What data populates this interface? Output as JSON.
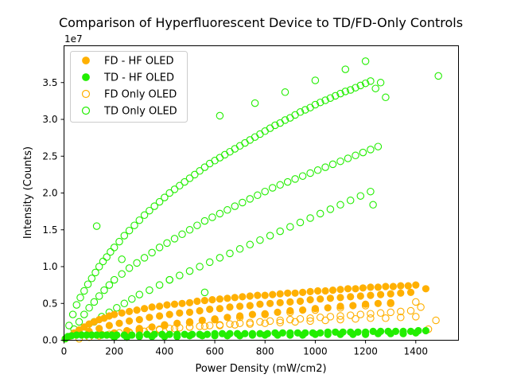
{
  "chart_data": {
    "type": "scatter",
    "title": "Comparison of Hyperfluorescent Device to TD/FD-Only Controls",
    "xlabel": "Power Density (mW/cm2)",
    "ylabel": "Intensity (Counts)",
    "y_offset_label": "1e7",
    "y_scale": 10000000,
    "xlim": [
      0,
      1570
    ],
    "ylim": [
      0,
      4.0
    ],
    "x_ticks": [
      0,
      200,
      400,
      600,
      800,
      1000,
      1200,
      1400
    ],
    "x_tick_labels": [
      "0",
      "200",
      "400",
      "600",
      "800",
      "1000",
      "1200",
      "1400"
    ],
    "y_ticks": [
      0.0,
      0.5,
      1.0,
      1.5,
      2.0,
      2.5,
      3.0,
      3.5
    ],
    "y_tick_labels": [
      "0.0",
      "0.5",
      "1.0",
      "1.5",
      "2.0",
      "2.5",
      "3.0",
      "3.5"
    ],
    "grid": false,
    "legend_position": "top-left",
    "series": [
      {
        "name": "FD - HF OLED",
        "color": "#ffb000",
        "marker": "filled-circle",
        "x": [
          5,
          20,
          40,
          60,
          80,
          100,
          120,
          140,
          160,
          180,
          200,
          230,
          260,
          290,
          320,
          350,
          380,
          410,
          440,
          470,
          500,
          530,
          560,
          590,
          620,
          650,
          680,
          710,
          740,
          770,
          800,
          830,
          860,
          890,
          920,
          950,
          980,
          1010,
          1040,
          1070,
          1100,
          1130,
          1160,
          1190,
          1220,
          1250,
          1280,
          1310,
          1340,
          1370,
          1400,
          1440,
          100,
          140,
          180,
          220,
          260,
          300,
          340,
          380,
          420,
          460,
          500,
          540,
          580,
          620,
          660,
          700,
          740,
          780,
          820,
          860,
          900,
          940,
          980,
          1020,
          1060,
          1100,
          1140,
          1180,
          1220,
          1260,
          1300,
          1340,
          1380,
          150,
          200,
          250,
          300,
          350,
          400,
          450,
          500,
          550,
          600,
          650,
          700,
          750,
          800,
          850,
          900,
          950,
          1000,
          1050,
          1100,
          1150,
          1200,
          1250,
          1300
        ],
        "y": [
          0.02,
          0.05,
          0.1,
          0.14,
          0.18,
          0.22,
          0.25,
          0.28,
          0.3,
          0.33,
          0.35,
          0.37,
          0.39,
          0.41,
          0.43,
          0.45,
          0.46,
          0.48,
          0.49,
          0.5,
          0.51,
          0.53,
          0.54,
          0.55,
          0.56,
          0.57,
          0.58,
          0.59,
          0.6,
          0.61,
          0.61,
          0.62,
          0.63,
          0.64,
          0.64,
          0.65,
          0.66,
          0.67,
          0.67,
          0.68,
          0.69,
          0.7,
          0.7,
          0.71,
          0.72,
          0.72,
          0.73,
          0.73,
          0.74,
          0.74,
          0.75,
          0.7,
          0.12,
          0.16,
          0.2,
          0.23,
          0.26,
          0.28,
          0.31,
          0.33,
          0.35,
          0.37,
          0.38,
          0.4,
          0.42,
          0.43,
          0.45,
          0.46,
          0.47,
          0.49,
          0.5,
          0.51,
          0.52,
          0.53,
          0.55,
          0.56,
          0.57,
          0.58,
          0.59,
          0.6,
          0.61,
          0.62,
          0.63,
          0.64,
          0.65,
          0.08,
          0.1,
          0.13,
          0.16,
          0.18,
          0.21,
          0.23,
          0.25,
          0.27,
          0.29,
          0.31,
          0.33,
          0.35,
          0.36,
          0.38,
          0.4,
          0.41,
          0.43,
          0.44,
          0.46,
          0.47,
          0.49,
          0.5,
          0.51
        ]
      },
      {
        "name": "TD - HF OLED",
        "color": "#22ee00",
        "marker": "filled-circle",
        "x": [
          5,
          15,
          30,
          50,
          70,
          90,
          110,
          130,
          150,
          170,
          190,
          210,
          240,
          270,
          300,
          330,
          360,
          390,
          420,
          450,
          480,
          510,
          540,
          570,
          600,
          630,
          660,
          690,
          720,
          750,
          780,
          810,
          840,
          870,
          900,
          930,
          960,
          990,
          1020,
          1050,
          1080,
          1110,
          1140,
          1170,
          1200,
          1230,
          1260,
          1290,
          1320,
          1350,
          1380,
          1410,
          1440,
          200,
          250,
          300,
          350,
          400,
          450,
          500,
          550,
          600,
          650,
          700,
          750,
          800,
          850,
          900,
          950,
          1000,
          1050,
          1100,
          1150,
          1200,
          1250,
          1300,
          1350,
          1400
        ],
        "y": [
          0.02,
          0.05,
          0.06,
          0.07,
          0.07,
          0.07,
          0.07,
          0.07,
          0.07,
          0.07,
          0.07,
          0.07,
          0.07,
          0.07,
          0.07,
          0.08,
          0.08,
          0.08,
          0.08,
          0.08,
          0.08,
          0.08,
          0.08,
          0.08,
          0.09,
          0.09,
          0.09,
          0.09,
          0.09,
          0.09,
          0.09,
          0.09,
          0.1,
          0.1,
          0.1,
          0.1,
          0.1,
          0.1,
          0.1,
          0.11,
          0.11,
          0.11,
          0.11,
          0.11,
          0.11,
          0.12,
          0.12,
          0.12,
          0.12,
          0.12,
          0.12,
          0.13,
          0.13,
          0.04,
          0.04,
          0.05,
          0.05,
          0.05,
          0.05,
          0.06,
          0.06,
          0.06,
          0.06,
          0.06,
          0.07,
          0.07,
          0.07,
          0.07,
          0.07,
          0.08,
          0.08,
          0.08,
          0.08,
          0.08,
          0.09,
          0.09,
          0.09,
          0.1
        ]
      },
      {
        "name": "FD Only OLED",
        "color": "#ffb000",
        "marker": "hollow-circle",
        "x": [
          60,
          100,
          140,
          180,
          220,
          260,
          300,
          340,
          380,
          420,
          460,
          500,
          540,
          580,
          620,
          660,
          700,
          740,
          780,
          820,
          860,
          900,
          940,
          980,
          1020,
          1060,
          1100,
          1140,
          1180,
          1220,
          1260,
          1300,
          1340,
          1380,
          1420,
          1480,
          200,
          260,
          320,
          380,
          440,
          500,
          560,
          620,
          680,
          740,
          800,
          860,
          920,
          980,
          1040,
          1100,
          1160,
          1220,
          1280,
          1340,
          1400,
          1450,
          300,
          400,
          500,
          600,
          700,
          800,
          900,
          1000,
          1100,
          1200,
          1300,
          1400
        ],
        "y": [
          0.02,
          0.04,
          0.06,
          0.08,
          0.1,
          0.11,
          0.13,
          0.14,
          0.15,
          0.16,
          0.17,
          0.18,
          0.19,
          0.2,
          0.21,
          0.22,
          0.23,
          0.24,
          0.25,
          0.26,
          0.27,
          0.28,
          0.29,
          0.3,
          0.31,
          0.32,
          0.33,
          0.34,
          0.35,
          0.36,
          0.37,
          0.38,
          0.39,
          0.4,
          0.45,
          0.27,
          0.08,
          0.1,
          0.12,
          0.14,
          0.16,
          0.18,
          0.19,
          0.2,
          0.21,
          0.22,
          0.23,
          0.24,
          0.25,
          0.26,
          0.27,
          0.28,
          0.29,
          0.3,
          0.3,
          0.31,
          0.32,
          0.15,
          0.15,
          0.2,
          0.24,
          0.28,
          0.31,
          0.35,
          0.38,
          0.41,
          0.44,
          0.47,
          0.5,
          0.52
        ]
      },
      {
        "name": "TD Only OLED",
        "color": "#22ee00",
        "marker": "hollow-circle",
        "x": [
          20,
          35,
          50,
          65,
          80,
          95,
          110,
          125,
          140,
          155,
          170,
          185,
          200,
          220,
          240,
          260,
          280,
          300,
          320,
          340,
          360,
          380,
          400,
          420,
          440,
          460,
          480,
          500,
          520,
          540,
          560,
          580,
          600,
          620,
          640,
          660,
          680,
          700,
          720,
          740,
          760,
          780,
          800,
          820,
          840,
          860,
          880,
          900,
          920,
          940,
          960,
          980,
          1000,
          1020,
          1040,
          1060,
          1080,
          1100,
          1120,
          1140,
          1160,
          1180,
          1200,
          1220,
          1240,
          1260,
          1280,
          40,
          60,
          80,
          100,
          120,
          140,
          160,
          180,
          200,
          230,
          260,
          290,
          320,
          350,
          380,
          410,
          440,
          470,
          500,
          530,
          560,
          590,
          620,
          650,
          680,
          710,
          740,
          770,
          800,
          830,
          860,
          890,
          920,
          950,
          980,
          1010,
          1040,
          1070,
          1100,
          1130,
          1160,
          1190,
          1220,
          1250,
          60,
          90,
          120,
          150,
          180,
          210,
          240,
          270,
          300,
          340,
          380,
          420,
          460,
          500,
          540,
          580,
          620,
          660,
          700,
          740,
          780,
          820,
          860,
          900,
          940,
          980,
          1020,
          1060,
          1100,
          1140,
          1180,
          1220,
          130,
          230,
          420,
          560,
          620,
          760,
          880,
          1000,
          1120,
          1200,
          1230,
          1490
        ],
        "y": [
          0.2,
          0.35,
          0.48,
          0.58,
          0.67,
          0.76,
          0.84,
          0.92,
          1.0,
          1.07,
          1.13,
          1.2,
          1.26,
          1.34,
          1.42,
          1.49,
          1.56,
          1.63,
          1.7,
          1.76,
          1.82,
          1.88,
          1.94,
          2.0,
          2.05,
          2.1,
          2.15,
          2.2,
          2.25,
          2.3,
          2.35,
          2.4,
          2.44,
          2.48,
          2.52,
          2.56,
          2.6,
          2.64,
          2.68,
          2.72,
          2.76,
          2.8,
          2.84,
          2.88,
          2.92,
          2.95,
          2.99,
          3.02,
          3.06,
          3.1,
          3.13,
          3.16,
          3.2,
          3.23,
          3.26,
          3.29,
          3.32,
          3.35,
          3.38,
          3.4,
          3.43,
          3.46,
          3.49,
          3.52,
          3.42,
          3.5,
          3.3,
          0.15,
          0.25,
          0.35,
          0.44,
          0.52,
          0.6,
          0.68,
          0.75,
          0.82,
          0.9,
          0.98,
          1.05,
          1.12,
          1.19,
          1.26,
          1.32,
          1.38,
          1.44,
          1.5,
          1.56,
          1.62,
          1.67,
          1.72,
          1.77,
          1.82,
          1.87,
          1.92,
          1.97,
          2.02,
          2.07,
          2.11,
          2.15,
          2.19,
          2.23,
          2.27,
          2.31,
          2.35,
          2.39,
          2.43,
          2.47,
          2.51,
          2.55,
          2.59,
          2.63,
          0.1,
          0.18,
          0.25,
          0.32,
          0.38,
          0.44,
          0.5,
          0.56,
          0.62,
          0.68,
          0.75,
          0.82,
          0.88,
          0.94,
          1.0,
          1.06,
          1.12,
          1.18,
          1.24,
          1.3,
          1.36,
          1.42,
          1.48,
          1.54,
          1.6,
          1.66,
          1.72,
          1.78,
          1.84,
          1.9,
          1.96,
          2.02,
          1.55,
          1.1,
          0.82,
          0.65,
          3.05,
          3.22,
          3.37,
          3.53,
          3.68,
          3.79,
          1.84,
          3.59
        ]
      }
    ]
  }
}
